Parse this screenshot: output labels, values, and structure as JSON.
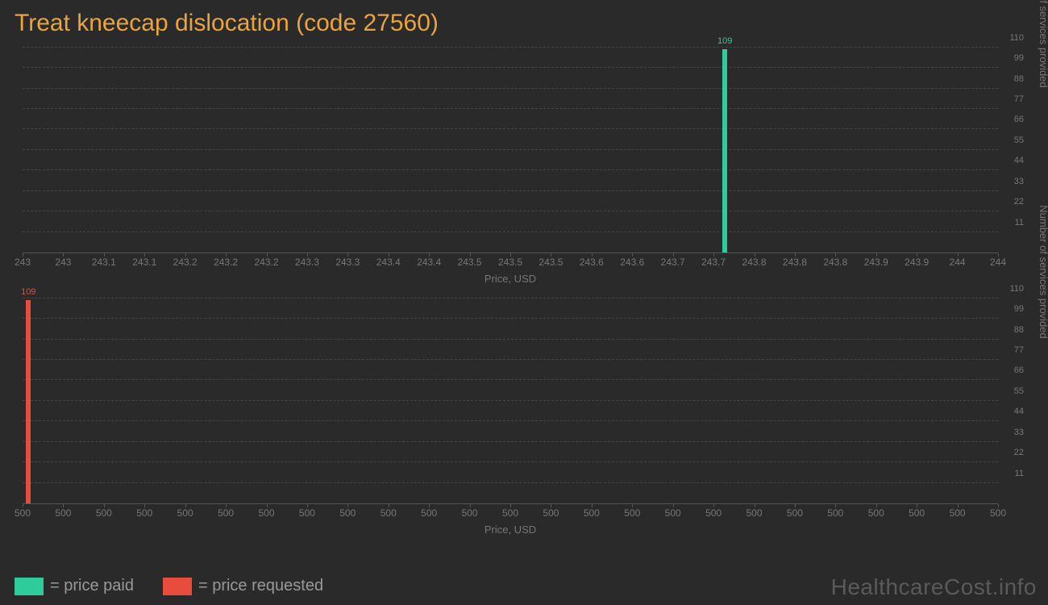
{
  "title": "Treat kneecap dislocation (code 27560)",
  "colors": {
    "background": "#2a2a2a",
    "title": "#e8a43e",
    "grid": "#444444",
    "axis": "#555555",
    "tick_text": "#777777",
    "bar_paid": "#2ecc9b",
    "bar_requested": "#e74c3c",
    "legend_text": "#999999",
    "watermark": "#5a5a5a"
  },
  "ylabel": "Number of services provided",
  "xlabel": "Price, USD",
  "yticks": [
    11,
    22,
    33,
    44,
    55,
    66,
    77,
    88,
    99,
    110
  ],
  "ylim": [
    0,
    112
  ],
  "chart_top": {
    "type": "bar",
    "series_name": "price paid",
    "xticks": [
      "243",
      "243",
      "243.1",
      "243.1",
      "243.2",
      "243.2",
      "243.2",
      "243.3",
      "243.3",
      "243.4",
      "243.4",
      "243.5",
      "243.5",
      "243.5",
      "243.6",
      "243.6",
      "243.7",
      "243.7",
      "243.8",
      "243.8",
      "243.8",
      "243.9",
      "243.9",
      "244",
      "244"
    ],
    "xlim": [
      243,
      244
    ],
    "bars": [
      {
        "x": 243.72,
        "y": 109,
        "label": "109"
      }
    ],
    "bar_color": "#2ecc9b"
  },
  "chart_bottom": {
    "type": "bar",
    "series_name": "price requested",
    "xticks": [
      "500",
      "500",
      "500",
      "500",
      "500",
      "500",
      "500",
      "500",
      "500",
      "500",
      "500",
      "500",
      "500",
      "500",
      "500",
      "500",
      "500",
      "500",
      "500",
      "500",
      "500",
      "500",
      "500",
      "500",
      "500"
    ],
    "xlim": [
      500,
      500
    ],
    "bars": [
      {
        "x_frac": 0.006,
        "y": 109,
        "label": "109"
      }
    ],
    "bar_color": "#e74c3c"
  },
  "legend": {
    "items": [
      {
        "color": "#2ecc9b",
        "label": "= price paid"
      },
      {
        "color": "#e74c3c",
        "label": "= price requested"
      }
    ]
  },
  "watermark": "HealthcareCost.info",
  "tick_fontsize": 12,
  "label_fontsize": 13,
  "title_fontsize": 30
}
